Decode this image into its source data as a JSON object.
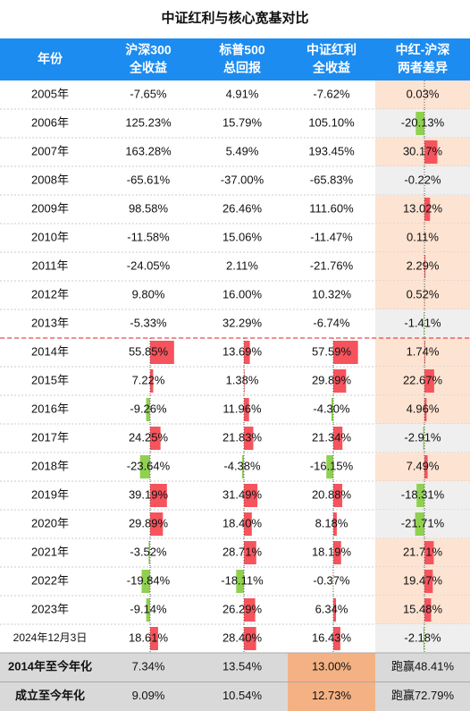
{
  "title": "中证红利与核心宽基对比",
  "table": {
    "header": [
      [
        "年份"
      ],
      [
        "沪深300",
        "全收益"
      ],
      [
        "标普500",
        "总回报"
      ],
      [
        "中证红利",
        "全收益"
      ],
      [
        "中红-沪深",
        "两者差异"
      ]
    ],
    "rows": [
      [
        "2005年",
        "-7.65%",
        "4.91%",
        "-7.62%",
        "0.03%"
      ],
      [
        "2006年",
        "125.23%",
        "15.79%",
        "105.10%",
        "-20.13%"
      ],
      [
        "2007年",
        "163.28%",
        "5.49%",
        "193.45%",
        "30.17%"
      ],
      [
        "2008年",
        "-65.61%",
        "-37.00%",
        "-65.83%",
        "-0.22%"
      ],
      [
        "2009年",
        "98.58%",
        "26.46%",
        "111.60%",
        "13.02%"
      ],
      [
        "2010年",
        "-11.58%",
        "15.06%",
        "-11.47%",
        "0.11%"
      ],
      [
        "2011年",
        "-24.05%",
        "2.11%",
        "-21.76%",
        "2.29%"
      ],
      [
        "2012年",
        "9.80%",
        "16.00%",
        "10.32%",
        "0.52%"
      ],
      [
        "2013年",
        "-5.33%",
        "32.29%",
        "-6.74%",
        "-1.41%"
      ],
      [
        "2014年",
        "55.85%",
        "13.69%",
        "57.59%",
        "1.74%"
      ],
      [
        "2015年",
        "7.22%",
        "1.38%",
        "29.89%",
        "22.67%"
      ],
      [
        "2016年",
        "-9.26%",
        "11.96%",
        "-4.30%",
        "4.96%"
      ],
      [
        "2017年",
        "24.25%",
        "21.83%",
        "21.34%",
        "-2.91%"
      ],
      [
        "2018年",
        "-23.64%",
        "-4.38%",
        "-16.15%",
        "7.49%"
      ],
      [
        "2019年",
        "39.19%",
        "31.49%",
        "20.88%",
        "-18.31%"
      ],
      [
        "2020年",
        "29.89%",
        "18.40%",
        "8.18%",
        "-21.71%"
      ],
      [
        "2021年",
        "-3.52%",
        "28.71%",
        "18.19%",
        "21.71%"
      ],
      [
        "2022年",
        "-19.84%",
        "-18.11%",
        "-0.37%",
        "19.47%"
      ],
      [
        "2023年",
        "-9.14%",
        "26.29%",
        "6.34%",
        "15.48%"
      ],
      [
        "2024年12月3日",
        "18.61%",
        "28.40%",
        "16.43%",
        "-2.18%"
      ]
    ],
    "footer": [
      [
        "2014年至今年化",
        "7.34%",
        "13.54%",
        "13.00%",
        "跑赢48.41%"
      ],
      [
        "成立至今年化",
        "9.09%",
        "10.54%",
        "12.73%",
        "跑赢72.79%"
      ]
    ]
  }
}
